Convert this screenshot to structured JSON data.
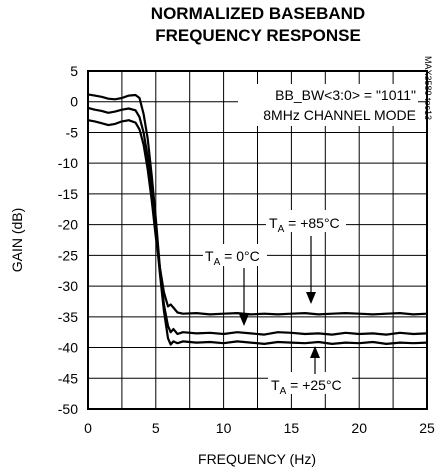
{
  "page": {
    "title_line1": "NORMALIZED BASEBAND",
    "title_line2": "FREQUENCY RESPONSE",
    "side_code": "MAX3580 toc13"
  },
  "chart_data": {
    "type": "line",
    "title": "NORMALIZED BASEBAND FREQUENCY RESPONSE",
    "xlabel": "FREQUENCY (Hz)",
    "ylabel": "GAIN (dB)",
    "xlim": [
      0,
      25
    ],
    "ylim": [
      -50,
      5
    ],
    "xticks": [
      "0",
      "5",
      "10",
      "15",
      "20",
      "25"
    ],
    "yticks": [
      "5",
      "0",
      "-5",
      "-10",
      "-15",
      "-20",
      "-25",
      "-30",
      "-35",
      "-40",
      "-45",
      "-50"
    ],
    "grid": true,
    "annotation_lines": [
      "BB_BW<3:0> = \"1011\"",
      "8MHz CHANNEL MODE"
    ],
    "series_labels": [
      {
        "prefix": "T",
        "sub": "A",
        "text": " = +85°C"
      },
      {
        "prefix": "T",
        "sub": "A",
        "text": " = 0°C"
      },
      {
        "prefix": "T",
        "sub": "A",
        "text": " = +25°C"
      }
    ],
    "series": [
      {
        "name": "TA = +85°C",
        "x": [
          0,
          0.5,
          1,
          1.5,
          2,
          2.5,
          3,
          3.5,
          3.8,
          4.1,
          4.4,
          4.7,
          5.0,
          5.3,
          5.6,
          5.9,
          6.1,
          6.3,
          6.6,
          7,
          8,
          9,
          10,
          11,
          12,
          13,
          14,
          15,
          16,
          17,
          18,
          19,
          20,
          21,
          22,
          23,
          24,
          25
        ],
        "y": [
          -3,
          -3.2,
          -3.5,
          -3.8,
          -3.6,
          -3.2,
          -3.0,
          -3.4,
          -4.5,
          -7,
          -11,
          -16,
          -22,
          -27,
          -31,
          -33.3,
          -33.0,
          -33.5,
          -34.3,
          -34.5,
          -34.4,
          -34.6,
          -34.5,
          -34.4,
          -34.6,
          -34.5,
          -34.6,
          -34.5,
          -34.4,
          -34.6,
          -34.5,
          -34.4,
          -34.5,
          -34.6,
          -34.5,
          -34.4,
          -34.6,
          -34.5
        ]
      },
      {
        "name": "TA = 0°C",
        "x": [
          0,
          0.5,
          1,
          1.5,
          2,
          2.5,
          3,
          3.5,
          3.8,
          4.1,
          4.4,
          4.7,
          5.0,
          5.3,
          5.6,
          5.9,
          6.1,
          6.3,
          6.6,
          7,
          8,
          9,
          10,
          11,
          12,
          13,
          14,
          15,
          16,
          17,
          18,
          19,
          20,
          21,
          22,
          23,
          24,
          25
        ],
        "y": [
          1.2,
          1.0,
          0.8,
          0.5,
          0.4,
          0.6,
          1.0,
          1.1,
          0.6,
          -2,
          -6,
          -12,
          -19,
          -27,
          -33,
          -36.5,
          -37.5,
          -37.0,
          -37.8,
          -37.5,
          -37.7,
          -37.6,
          -37.8,
          -37.5,
          -37.7,
          -37.9,
          -37.5,
          -37.6,
          -37.8,
          -37.7,
          -37.9,
          -37.6,
          -37.8,
          -37.7,
          -37.9,
          -37.6,
          -37.8,
          -37.7
        ]
      },
      {
        "name": "TA = +25°C",
        "x": [
          0,
          0.5,
          1,
          1.5,
          2,
          2.5,
          3,
          3.5,
          3.8,
          4.1,
          4.4,
          4.7,
          5.0,
          5.3,
          5.6,
          5.9,
          6.1,
          6.3,
          6.6,
          7,
          8,
          9,
          10,
          11,
          12,
          13,
          14,
          15,
          16,
          17,
          18,
          19,
          20,
          21,
          22,
          23,
          24,
          25
        ],
        "y": [
          -1.0,
          -1.3,
          -1.5,
          -1.8,
          -1.6,
          -1.3,
          -1.1,
          -1.4,
          -2.5,
          -5,
          -9,
          -14,
          -21,
          -28,
          -34,
          -38.5,
          -39.5,
          -39.0,
          -39.3,
          -39.0,
          -39.2,
          -39.1,
          -39.3,
          -39.0,
          -39.2,
          -39.4,
          -39.1,
          -39.2,
          -39.3,
          -39.1,
          -39.4,
          -39.2,
          -39.3,
          -39.1,
          -39.4,
          -39.2,
          -39.3,
          -39.2
        ]
      }
    ]
  }
}
